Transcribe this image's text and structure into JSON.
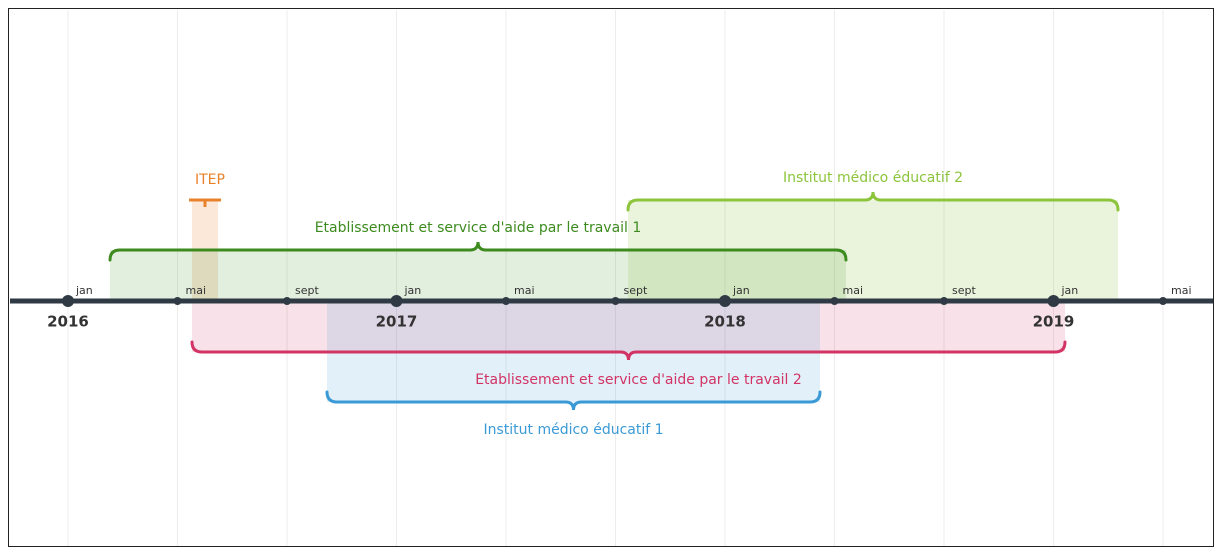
{
  "timeline": {
    "months": [
      "jan",
      "mai",
      "sept",
      "jan",
      "mai",
      "sept",
      "jan",
      "mai",
      "sept",
      "jan",
      "mai"
    ],
    "years": [
      "2016",
      "2017",
      "2018",
      "2019"
    ],
    "periods": [
      {
        "label": "ITEP",
        "color": "#e8822a"
      },
      {
        "label": "Etablissement et service d'aide par le travail 1",
        "color": "#3d8b1f"
      },
      {
        "label": "Institut médico éducatif 2",
        "color": "#8cc43c"
      },
      {
        "label": "Etablissement et service d'aide par le travail 2",
        "color": "#d23465"
      },
      {
        "label": "Institut médico éducatif 1",
        "color": "#3a9ad6"
      }
    ]
  }
}
